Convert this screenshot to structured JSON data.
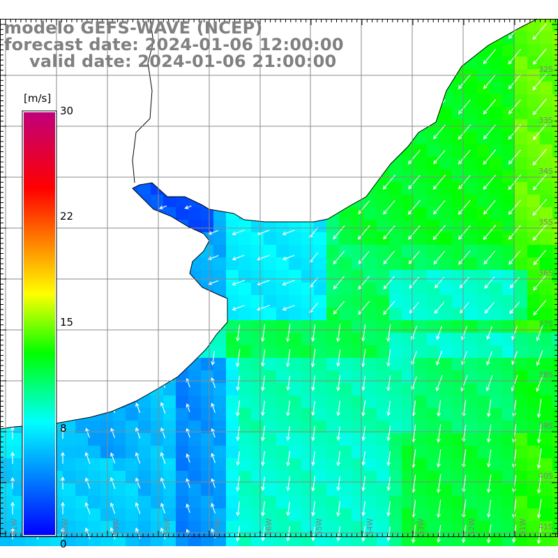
{
  "header": {
    "model_line": "modelo GEFS-WAVE (NCEP)",
    "forecast_line": "forecast date: 2024-01-06 12:00:00",
    "valid_line": "valid date: 2024-01-06 21:00:00"
  },
  "colorbar": {
    "unit": "[m/s]",
    "ticks": [
      "30",
      "22",
      "15",
      "8",
      "0"
    ],
    "tick_values": [
      30,
      22,
      15,
      8,
      0
    ],
    "range": [
      0,
      30
    ],
    "colors": [
      "#0000ff",
      "#00ffff",
      "#00ff00",
      "#ffff00",
      "#ff0000",
      "#c0007a"
    ]
  },
  "grid": {
    "lon_labels": [
      "61W",
      "60W",
      "59W",
      "58W",
      "57W",
      "56W",
      "55W",
      "54W",
      "53W",
      "52W",
      "51W"
    ],
    "lat_labels": [
      "32S",
      "33S",
      "34S",
      "35S",
      "36S",
      "37S",
      "38S",
      "39S",
      "40S",
      "41S"
    ],
    "line_color": "#888888",
    "label_color": "#808080"
  },
  "map": {
    "land_color": "#ffffff",
    "coast_color": "#000000",
    "arrow_color": "#ffffff"
  }
}
